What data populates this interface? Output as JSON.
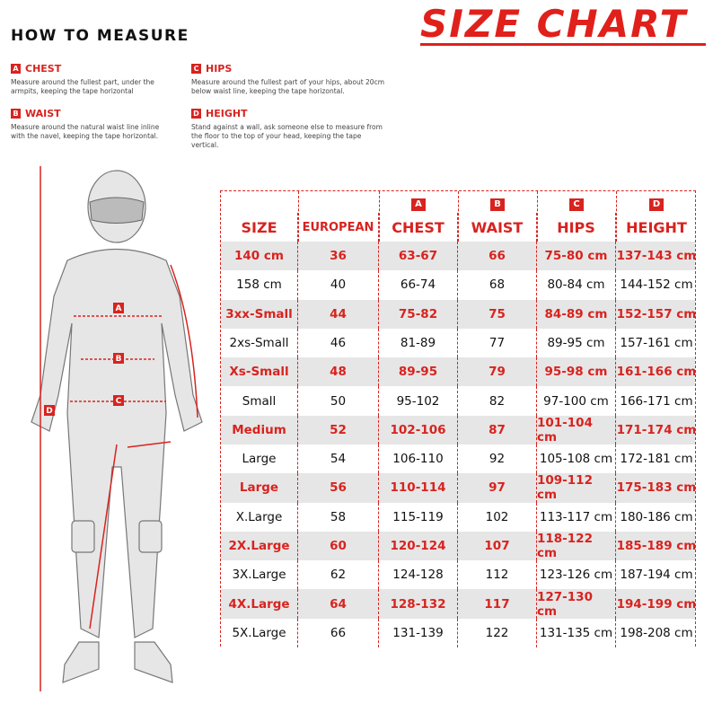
{
  "title": "SIZE CHART",
  "how_to": {
    "heading": "HOW TO MEASURE",
    "measures": [
      {
        "letter": "A",
        "name": "CHEST",
        "description": "Measure around the fullest part, under the armpits, keeping the tape horizontal"
      },
      {
        "letter": "B",
        "name": "WAIST",
        "description": "Measure around the natural waist line inline with the navel, keeping the tape horizontal."
      },
      {
        "letter": "C",
        "name": "HIPS",
        "description": "Measure around the fullest part of your hips, about 20cm below waist line, keeping the tape horizontal."
      },
      {
        "letter": "D",
        "name": "HEIGHT",
        "description": "Stand against a wall, ask someone else to measure from the floor to the top of your head, keeping the tape vertical."
      }
    ]
  },
  "table": {
    "columns": [
      {
        "label": "SIZE"
      },
      {
        "label": "EUROPEAN"
      },
      {
        "letter": "A",
        "label": "CHEST"
      },
      {
        "letter": "B",
        "label": "WAIST"
      },
      {
        "letter": "C",
        "label": "HIPS"
      },
      {
        "letter": "D",
        "label": "HEIGHT"
      }
    ],
    "rows": [
      [
        "140 cm",
        "36",
        "63-67",
        "66",
        "75-80 cm",
        "137-143 cm"
      ],
      [
        "158 cm",
        "40",
        "66-74",
        "68",
        "80-84 cm",
        "144-152 cm"
      ],
      [
        "3xx-Small",
        "44",
        "75-82",
        "75",
        "84-89 cm",
        "152-157 cm"
      ],
      [
        "2xs-Small",
        "46",
        "81-89",
        "77",
        "89-95 cm",
        "157-161 cm"
      ],
      [
        "Xs-Small",
        "48",
        "89-95",
        "79",
        "95-98 cm",
        "161-166 cm"
      ],
      [
        "Small",
        "50",
        "95-102",
        "82",
        "97-100 cm",
        "166-171 cm"
      ],
      [
        "Medium",
        "52",
        "102-106",
        "87",
        "101-104 cm",
        "171-174 cm"
      ],
      [
        "Large",
        "54",
        "106-110",
        "92",
        "105-108 cm",
        "172-181 cm"
      ],
      [
        "Large",
        "56",
        "110-114",
        "97",
        "109-112 cm",
        "175-183 cm"
      ],
      [
        "X.Large",
        "58",
        "115-119",
        "102",
        "113-117 cm",
        "180-186 cm"
      ],
      [
        "2X.Large",
        "60",
        "120-124",
        "107",
        "118-122 cm",
        "185-189 cm"
      ],
      [
        "3X.Large",
        "62",
        "124-128",
        "112",
        "123-126 cm",
        "187-194 cm"
      ],
      [
        "4X.Large",
        "64",
        "128-132",
        "117",
        "127-130 cm",
        "194-199 cm"
      ],
      [
        "5X.Large",
        "66",
        "131-139",
        "122",
        "131-135 cm",
        "198-208 cm"
      ]
    ]
  }
}
